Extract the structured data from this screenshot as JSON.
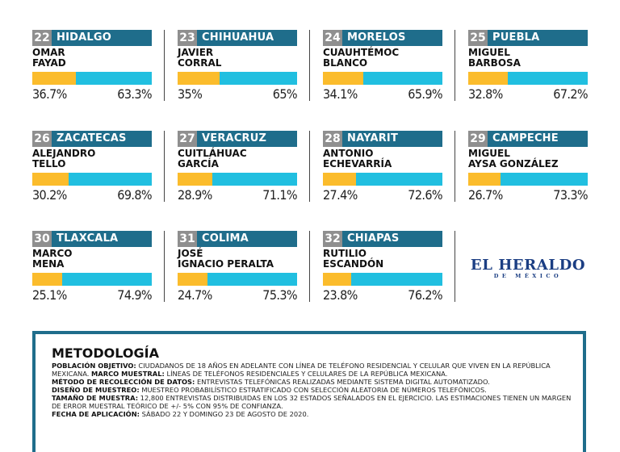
{
  "colors": {
    "header": "#1f6d8b",
    "number_badge": "#8f8f8f",
    "bar_left": "#fbbc2c",
    "bar_right": "#21bfe0",
    "logo": "#1b3e83"
  },
  "cards": [
    {
      "num": "22",
      "state": "HIDALGO",
      "name1": "OMAR",
      "name2": "FAYAD",
      "left_value": 36.7,
      "left": "36.7%",
      "right": "63.3%"
    },
    {
      "num": "23",
      "state": "CHIHUAHUA",
      "name1": "JAVIER",
      "name2": "CORRAL",
      "left_value": 35,
      "left": "35%",
      "right": "65%"
    },
    {
      "num": "24",
      "state": "MORELOS",
      "name1": "CUAUHTÉMOC",
      "name2": "BLANCO",
      "left_value": 34.1,
      "left": "34.1%",
      "right": "65.9%"
    },
    {
      "num": "25",
      "state": "PUEBLA",
      "name1": "MIGUEL",
      "name2": "BARBOSA",
      "left_value": 32.8,
      "left": "32.8%",
      "right": "67.2%"
    },
    {
      "num": "26",
      "state": "ZACATECAS",
      "name1": "ALEJANDRO",
      "name2": "TELLO",
      "left_value": 30.2,
      "left": "30.2%",
      "right": "69.8%"
    },
    {
      "num": "27",
      "state": "VERACRUZ",
      "name1": "CUITLÁHUAC",
      "name2": "GARCÍA",
      "left_value": 28.9,
      "left": "28.9%",
      "right": "71.1%"
    },
    {
      "num": "28",
      "state": "NAYARIT",
      "name1": "ANTONIO",
      "name2": "ECHEVARRÍA",
      "left_value": 27.4,
      "left": "27.4%",
      "right": "72.6%"
    },
    {
      "num": "29",
      "state": "CAMPECHE",
      "name1": "MIGUEL",
      "name2": "AYSA GONZÁLEZ",
      "left_value": 26.7,
      "left": "26.7%",
      "right": "73.3%"
    },
    {
      "num": "30",
      "state": "TLAXCALA",
      "name1": "MARCO",
      "name2": "MENA",
      "left_value": 25.1,
      "left": "25.1%",
      "right": "74.9%"
    },
    {
      "num": "31",
      "state": "COLIMA",
      "name1": "JOSÉ",
      "name2": "IGNACIO PERALTA",
      "left_value": 24.7,
      "left": "24.7%",
      "right": "75.3%"
    },
    {
      "num": "32",
      "state": "CHIAPAS",
      "name1": "RUTILIO",
      "name2": "ESCANDÓN",
      "left_value": 23.8,
      "left": "23.8%",
      "right": "76.2%"
    }
  ],
  "logo": {
    "main": "EL HERALDO",
    "sub": "DE MÉXICO"
  },
  "methodology": {
    "title": "METODOLOGÍA",
    "poblacion_label": "POBLACIÓN OBJETIVO:",
    "poblacion": "CIUDADANOS DE 18 AÑOS EN ADELANTE CON LÍNEA DE TELÉFONO RESIDENCIAL Y CELULAR QUE VIVEN EN LA REPÚBLICA MEXICANA.",
    "marco_label": "MARCO MUESTRAL:",
    "marco": "LÍNEAS DE TELÉFONOS RESIDENCIALES Y CELULARES DE LA REPÚBLICA MEXICANA.",
    "metodo_label": "MÉTODO DE RECOLECCIÓN DE DATOS:",
    "metodo": "ENTREVISTAS TELEFÓNICAS REALIZADAS MEDIANTE SISTEMA DIGITAL AUTOMATIZADO.",
    "diseno_label": "DISEÑO DE MUESTREO:",
    "diseno": "MUESTREO PROBABILÍSTICO ESTRATIFICADO CON SELECCIÓN ALEATORIA DE NÚMEROS TELEFÓNICOS.",
    "tamano_label": "TAMAÑO DE MUESTRA:",
    "tamano": "12,800 ENTREVISTAS DISTRIBUIDAS EN LOS 32 ESTADOS SEÑALADOS EN EL EJERCICIO. LAS ESTIMACIONES TIENEN UN MARGEN DE ERROR MUESTRAL TEÓRICO DE +/- 5% CON 95% DE CONFIANZA.",
    "fecha_label": "FECHA DE APLICACIÓN:",
    "fecha": "SÁBADO 22 Y DOMINGO 23 DE AGOSTO DE 2020."
  }
}
